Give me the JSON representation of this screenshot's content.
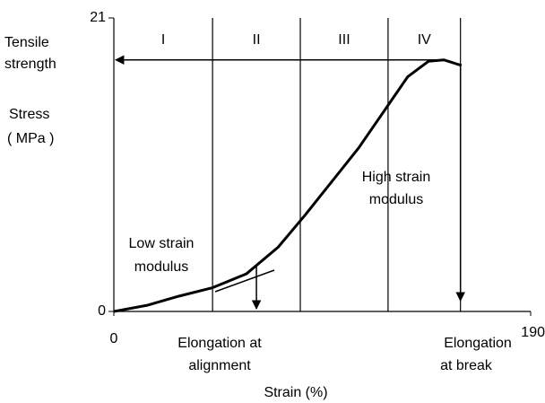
{
  "chart_data": {
    "type": "line",
    "x": [
      0,
      15.5,
      29.8,
      45,
      60.5,
      74.9,
      87.2,
      111.6,
      134,
      143.4,
      150.4,
      158.5
    ],
    "values": [
      0,
      0.45,
      1.1,
      1.7,
      2.7,
      4.6,
      6.9,
      11.7,
      16.8,
      17.9,
      18.0,
      17.6
    ],
    "color": "#000000",
    "xlim": [
      0,
      190
    ],
    "ylim": [
      0,
      21
    ],
    "xticks": [
      0,
      190
    ],
    "yticks": [
      0,
      21
    ],
    "ylabel": [
      "Stress",
      "( MPa )"
    ],
    "xlabel": "Strain (%)",
    "regions": [
      {
        "label": "I",
        "end": 45
      },
      {
        "label": "II",
        "end": 85
      },
      {
        "label": "III",
        "end": 125
      },
      {
        "label": "IV",
        "end": 158
      }
    ],
    "tensile_strength": {
      "label": [
        "Tensile",
        "strength"
      ],
      "value": 18
    },
    "alignment": {
      "label": [
        "Elongation at",
        "alignment"
      ],
      "value": 65
    },
    "break": {
      "label": [
        "Elongation",
        "at break"
      ],
      "value": 158
    },
    "low_modulus": [
      "Low strain",
      "modulus"
    ],
    "high_modulus": [
      "High strain",
      "modulus"
    ]
  }
}
